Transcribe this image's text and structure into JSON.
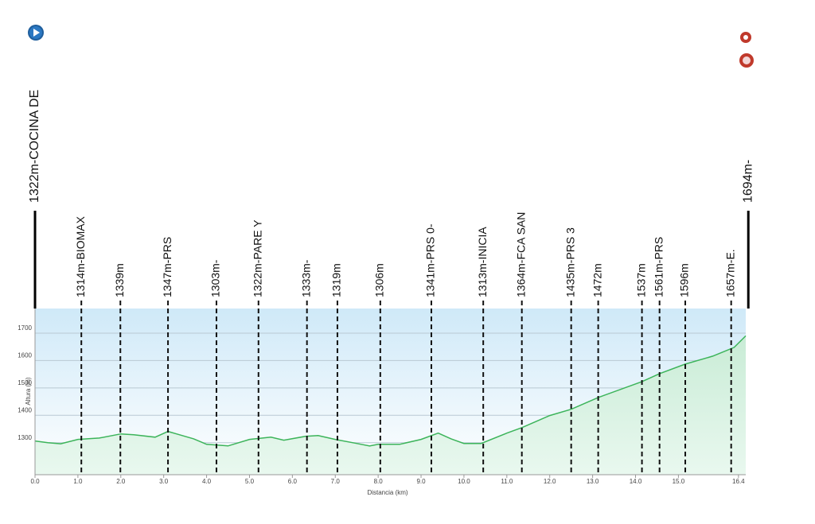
{
  "chart_data": {
    "type": "area",
    "x_label": "Distancia  (km)",
    "y_label": "Altura (m)",
    "color": "#3cb45a",
    "grid": true,
    "xlim": [
      0,
      16.57
    ],
    "ylim": [
      1183,
      1790
    ],
    "xticks": [
      {
        "value": 0,
        "label": "0.0"
      },
      {
        "value": 1,
        "label": "1.0"
      },
      {
        "value": 2,
        "label": "2.0"
      },
      {
        "value": 3,
        "label": "3.0"
      },
      {
        "value": 4,
        "label": "4.0"
      },
      {
        "value": 5,
        "label": "5.0"
      },
      {
        "value": 6,
        "label": "6.0"
      },
      {
        "value": 7,
        "label": "7.0"
      },
      {
        "value": 8,
        "label": "8.0"
      },
      {
        "value": 9,
        "label": "9.0"
      },
      {
        "value": 10,
        "label": "10.0"
      },
      {
        "value": 11,
        "label": "11.0"
      },
      {
        "value": 12,
        "label": "12.0"
      },
      {
        "value": 13,
        "label": "13.0"
      },
      {
        "value": 14,
        "label": "14.0"
      },
      {
        "value": 15,
        "label": "15.0"
      },
      16.4
    ],
    "yticks": [
      1300,
      1400,
      1500,
      1600,
      1700
    ],
    "x": [
      0,
      0.3,
      0.6,
      1.0,
      1.5,
      2.0,
      2.3,
      2.8,
      3.1,
      3.3,
      3.7,
      4.0,
      4.5,
      5.0,
      5.5,
      5.8,
      6.3,
      6.6,
      7.0,
      7.5,
      7.8,
      8.0,
      8.5,
      9.0,
      9.4,
      9.7,
      10.0,
      10.4,
      11.0,
      11.35,
      12.0,
      12.5,
      13.13,
      14.15,
      14.56,
      15.16,
      15.8,
      16.3,
      16.57
    ],
    "values": [
      1306,
      1300,
      1296,
      1312,
      1317,
      1332,
      1329,
      1320,
      1341,
      1332,
      1314,
      1294,
      1288,
      1312,
      1320,
      1309,
      1323,
      1326,
      1312,
      1297,
      1288,
      1294,
      1294,
      1312,
      1335,
      1314,
      1297,
      1297,
      1335,
      1355,
      1399,
      1422,
      1465,
      1523,
      1552,
      1587,
      1616,
      1648,
      1690
    ],
    "waypoints": [
      {
        "x": 0,
        "label": "1322m-COCINA DE"
      },
      {
        "x": 1.08,
        "label": "1314m-BIOMAX"
      },
      {
        "x": 1.99,
        "label": "1339m"
      },
      {
        "x": 3.1,
        "label": "1347m-PRS"
      },
      {
        "x": 4.23,
        "label": "1303m-"
      },
      {
        "x": 5.21,
        "label": "1322m-PARE Y"
      },
      {
        "x": 6.34,
        "label": "1333m-"
      },
      {
        "x": 7.05,
        "label": "1319m"
      },
      {
        "x": 8.05,
        "label": "1306m"
      },
      {
        "x": 9.24,
        "label": "1341m-PRS 0-"
      },
      {
        "x": 10.45,
        "label": "1313m-INICIA"
      },
      {
        "x": 11.35,
        "label": "1364m-FCA SAN"
      },
      {
        "x": 12.5,
        "label": "1435m-PRS 3"
      },
      {
        "x": 13.13,
        "label": "1472m"
      },
      {
        "x": 14.15,
        "label": "1537m"
      },
      {
        "x": 14.56,
        "label": "1561m-PRS"
      },
      {
        "x": 15.16,
        "label": "1596m"
      },
      {
        "x": 16.23,
        "label": "1657m-E."
      },
      {
        "x": 16.63,
        "label": "1694m-"
      }
    ]
  }
}
